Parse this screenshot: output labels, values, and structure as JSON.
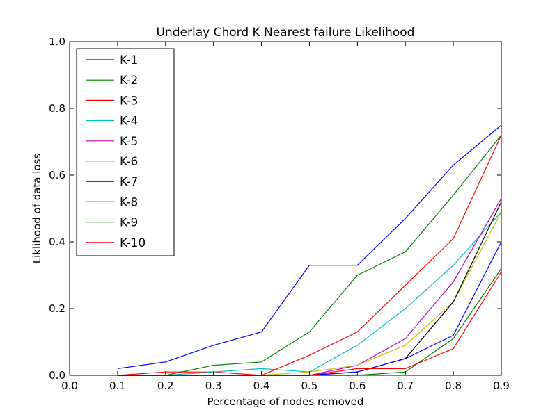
{
  "chart_data": {
    "type": "line",
    "title": "Underlay Chord K Nearest failure Likelihood",
    "xlabel": "Percentage of nodes removed",
    "ylabel": "Liklihood of data loss",
    "xlim": [
      0.0,
      0.9
    ],
    "ylim": [
      0.0,
      1.0
    ],
    "xticks": [
      "0.0",
      "0.1",
      "0.2",
      "0.3",
      "0.4",
      "0.5",
      "0.6",
      "0.7",
      "0.8",
      "0.9"
    ],
    "yticks": [
      "0.0",
      "0.2",
      "0.4",
      "0.6",
      "0.8",
      "1.0"
    ],
    "grid": false,
    "legend_position": "top-left",
    "x": [
      0.1,
      0.2,
      0.3,
      0.4,
      0.5,
      0.6,
      0.7,
      0.8,
      0.9
    ],
    "series": [
      {
        "name": "K-1",
        "color": "#0000ff",
        "values": [
          0.02,
          0.04,
          0.09,
          0.13,
          0.33,
          0.33,
          0.47,
          0.63,
          0.75
        ]
      },
      {
        "name": "K-2",
        "color": "#008000",
        "values": [
          0.0,
          0.0,
          0.03,
          0.04,
          0.13,
          0.3,
          0.37,
          0.54,
          0.72
        ]
      },
      {
        "name": "K-3",
        "color": "#ff0000",
        "values": [
          0.0,
          0.01,
          0.01,
          0.0,
          0.06,
          0.13,
          0.27,
          0.41,
          0.72
        ]
      },
      {
        "name": "K-4",
        "color": "#00bfbf",
        "values": [
          0.0,
          0.0,
          0.01,
          0.02,
          0.01,
          0.09,
          0.2,
          0.33,
          0.49
        ]
      },
      {
        "name": "K-5",
        "color": "#bf00bf",
        "values": [
          0.0,
          0.0,
          0.0,
          0.0,
          0.0,
          0.03,
          0.11,
          0.28,
          0.53
        ]
      },
      {
        "name": "K-6",
        "color": "#bfbf00",
        "values": [
          0.0,
          0.0,
          0.0,
          0.0,
          0.01,
          0.03,
          0.09,
          0.22,
          0.49
        ]
      },
      {
        "name": "K-7",
        "color": "#000000",
        "values": [
          0.0,
          0.0,
          0.0,
          0.0,
          0.0,
          0.01,
          0.05,
          0.22,
          0.52
        ]
      },
      {
        "name": "K-8",
        "color": "#0000ff",
        "values": [
          0.0,
          0.0,
          0.0,
          0.0,
          0.0,
          0.01,
          0.05,
          0.12,
          0.4
        ]
      },
      {
        "name": "K-9",
        "color": "#008000",
        "values": [
          0.0,
          0.0,
          0.0,
          0.0,
          0.0,
          0.0,
          0.01,
          0.11,
          0.32
        ]
      },
      {
        "name": "K-10",
        "color": "#ff0000",
        "values": [
          0.0,
          0.0,
          0.0,
          0.0,
          0.0,
          0.02,
          0.02,
          0.08,
          0.31
        ]
      }
    ]
  }
}
